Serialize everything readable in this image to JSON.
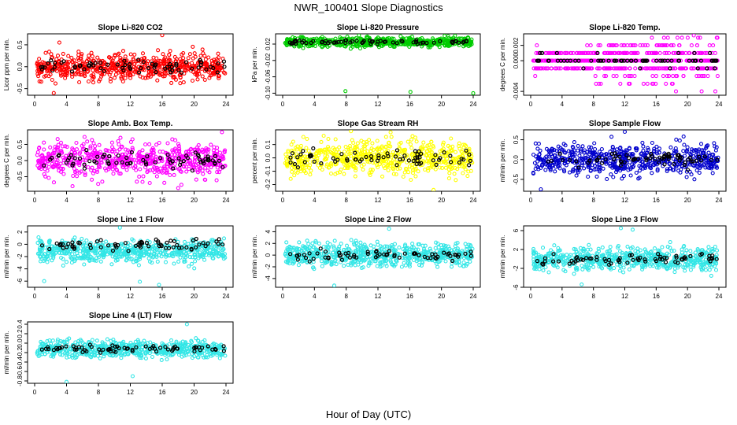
{
  "page": {
    "title": "NWR_100401  Slope Diagnostics",
    "xlabel": "Hour of Day (UTC)"
  },
  "chart_data": [
    {
      "type": "scatter",
      "title": "Slope Li-820 CO2",
      "ylabel": "Licor ppm per min.",
      "xlim": [
        0,
        24
      ],
      "ylim": [
        -0.65,
        0.75
      ],
      "xticks": [
        0,
        4,
        8,
        12,
        16,
        20,
        24
      ],
      "xtick_labels": [
        "0",
        "4",
        "8",
        "12",
        "16",
        "20",
        "24"
      ],
      "yticks": [
        -0.5,
        0.0,
        0.5
      ],
      "ytick_labels": [
        "-0.5",
        "0.0",
        "0.5"
      ],
      "color": "#ff0000",
      "center": 0.0,
      "spread": 0.22,
      "outliers": [
        [
          2.4,
          -0.6
        ],
        [
          16.0,
          0.72
        ],
        [
          3.1,
          0.55
        ],
        [
          17.0,
          0.36
        ]
      ],
      "series": [
        {
          "values_summary": "dense band of ~700 points spread -0.3 to 0.3 across 0-24 h",
          "color": "#ff0000"
        },
        {
          "values_summary": "sparse black points near 0 across 0-24 h",
          "color": "#000000"
        }
      ]
    },
    {
      "type": "scatter",
      "title": "Slope Li-820 Pressure",
      "ylabel": "kPa per min.",
      "xlim": [
        0,
        24
      ],
      "ylim": [
        -0.105,
        0.045
      ],
      "xticks": [
        0,
        4,
        8,
        12,
        16,
        20,
        24
      ],
      "xtick_labels": [
        "0",
        "4",
        "8",
        "12",
        "16",
        "20",
        "24"
      ],
      "yticks": [
        -0.1,
        -0.06,
        -0.02,
        0.02
      ],
      "ytick_labels": [
        "-0.10",
        "-0.06",
        "-0.02",
        "0.02"
      ],
      "color": "#00cc00",
      "center": 0.025,
      "spread": 0.008,
      "outliers": [
        [
          7.9,
          -0.095
        ],
        [
          16.1,
          -0.097
        ],
        [
          24.0,
          -0.1
        ],
        [
          20.4,
          0.04
        ],
        [
          16.3,
          0.038
        ]
      ],
      "series": [
        {
          "values_summary": "tight band near 0.02 kPa per min. across 0-24 h",
          "color": "#00cc00"
        },
        {
          "values_summary": "sparse black points near 0.02",
          "color": "#000000"
        }
      ]
    },
    {
      "type": "scatter",
      "title": "Slope Li-820 Temp.",
      "ylabel": "degrees C per min.",
      "xlim": [
        0,
        24
      ],
      "ylim": [
        -0.0045,
        0.0035
      ],
      "xticks": [
        0,
        4,
        8,
        12,
        16,
        20,
        24
      ],
      "xtick_labels": [
        "0",
        "4",
        "8",
        "12",
        "16",
        "20",
        "24"
      ],
      "yticks": [
        -0.004,
        0.0,
        0.002
      ],
      "ytick_labels": [
        "-0.004",
        "0.000",
        "0.002"
      ],
      "color": "#ff00ff",
      "center": 0.0,
      "spread": 0.0012,
      "quantum": 0.001,
      "outliers": [
        [
          20.8,
          0.0033
        ],
        [
          21.8,
          -0.004
        ]
      ],
      "series": [
        {
          "values_summary": "quantized points at 0, ±0.001, ±0.002 spreading wider after 8 h",
          "color": "#ff00ff"
        },
        {
          "values_summary": "sparse black points near 0",
          "color": "#000000"
        }
      ]
    },
    {
      "type": "scatter",
      "title": "Slope Amb. Box Temp.",
      "ylabel": "degrees C per min.",
      "xlim": [
        0,
        24
      ],
      "ylim": [
        -0.95,
        0.95
      ],
      "xticks": [
        0,
        4,
        8,
        12,
        16,
        20,
        24
      ],
      "xtick_labels": [
        "0",
        "4",
        "8",
        "12",
        "16",
        "20",
        "24"
      ],
      "yticks": [
        -0.5,
        0.0,
        0.5
      ],
      "ytick_labels": [
        "-0.5",
        "0.0",
        "0.5"
      ],
      "color": "#ff00ff",
      "center": 0.0,
      "spread": 0.38,
      "outliers": [
        [
          23.5,
          0.88
        ],
        [
          18.0,
          -0.85
        ]
      ],
      "series": [
        {
          "values_summary": "broad band -0.8 to 0.8 across 0-24 h",
          "color": "#ff00ff"
        },
        {
          "values_summary": "sparse black points near 0",
          "color": "#000000"
        }
      ]
    },
    {
      "type": "scatter",
      "title": "Slope Gas Stream RH",
      "ylabel": "percent per min.",
      "xlim": [
        0,
        24
      ],
      "ylim": [
        -0.25,
        0.21
      ],
      "xticks": [
        0,
        4,
        8,
        12,
        16,
        20,
        24
      ],
      "xtick_labels": [
        "0",
        "4",
        "8",
        "12",
        "16",
        "20",
        "24"
      ],
      "yticks": [
        -0.2,
        -0.1,
        0.0,
        0.1
      ],
      "ytick_labels": [
        "-0.2",
        "-0.1",
        "0.0",
        "0.1"
      ],
      "color": "#ffff00",
      "center": 0.0,
      "spread": 0.09,
      "outliers": [
        [
          8.6,
          0.2
        ],
        [
          19.0,
          -0.24
        ]
      ],
      "series": [
        {
          "values_summary": "band -0.2 to 0.2 across 0-24 h",
          "color": "#ffff00"
        },
        {
          "values_summary": "sparse black points near 0",
          "color": "#000000"
        }
      ]
    },
    {
      "type": "scatter",
      "title": "Slope Sample Flow",
      "ylabel": "ml/min per min.",
      "xlim": [
        0,
        24
      ],
      "ylim": [
        -0.8,
        0.75
      ],
      "xticks": [
        0,
        4,
        8,
        12,
        16,
        20,
        24
      ],
      "xtick_labels": [
        "0",
        "4",
        "8",
        "12",
        "16",
        "20",
        "24"
      ],
      "yticks": [
        -0.5,
        0.0,
        0.5
      ],
      "ytick_labels": [
        "-0.5",
        "0.0",
        "0.5"
      ],
      "color": "#0000cc",
      "center": 0.0,
      "spread": 0.28,
      "outliers": [
        [
          1.3,
          -0.75
        ],
        [
          12.0,
          0.7
        ]
      ],
      "series": [
        {
          "values_summary": "band -0.7 to 0.7 across 0-24 h",
          "color": "#0000cc"
        },
        {
          "values_summary": "sparse black points near 0",
          "color": "#000000"
        }
      ]
    },
    {
      "type": "scatter",
      "title": "Slope Line 1 Flow",
      "ylabel": "ml/min per min.",
      "xlim": [
        0,
        24
      ],
      "ylim": [
        -7,
        3
      ],
      "xticks": [
        0,
        4,
        8,
        12,
        16,
        20,
        24
      ],
      "xtick_labels": [
        "0",
        "4",
        "8",
        "12",
        "16",
        "20",
        "24"
      ],
      "yticks": [
        -6,
        -4,
        -2,
        0,
        2
      ],
      "ytick_labels": [
        "-6",
        "-4",
        "-2",
        "0",
        "2"
      ],
      "color": "#33e6e6",
      "center": -1.2,
      "spread": 1.3,
      "outliers": [
        [
          15.6,
          -6.6
        ],
        [
          10.7,
          2.7
        ],
        [
          1.2,
          -6.0
        ],
        [
          13.2,
          -6.1
        ]
      ],
      "series": [
        {
          "values_summary": "band -5 to 2 across 0-24 h",
          "color": "#33e6e6"
        },
        {
          "values_summary": "black points near 0",
          "color": "#000000"
        }
      ]
    },
    {
      "type": "scatter",
      "title": "Slope Line 2 Flow",
      "ylabel": "ml/min per min.",
      "xlim": [
        0,
        24
      ],
      "ylim": [
        -5.5,
        5
      ],
      "xticks": [
        0,
        4,
        8,
        12,
        16,
        20,
        24
      ],
      "xtick_labels": [
        "0",
        "4",
        "8",
        "12",
        "16",
        "20",
        "24"
      ],
      "yticks": [
        -4,
        -2,
        0,
        2,
        4
      ],
      "ytick_labels": [
        "-4",
        "-2",
        "0",
        "2",
        "4"
      ],
      "color": "#33e6e6",
      "center": 0.0,
      "spread": 1.4,
      "outliers": [
        [
          6.5,
          -5.2
        ],
        [
          13.4,
          4.5
        ]
      ],
      "series": [
        {
          "values_summary": "band -4 to 4 across 0-24 h",
          "color": "#33e6e6"
        },
        {
          "values_summary": "sparse black points near 0",
          "color": "#000000"
        }
      ]
    },
    {
      "type": "scatter",
      "title": "Slope Line 3 Flow",
      "ylabel": "ml/min per min.",
      "xlim": [
        0,
        24
      ],
      "ylim": [
        -6,
        7
      ],
      "xticks": [
        0,
        4,
        8,
        12,
        16,
        20,
        24
      ],
      "xtick_labels": [
        "0",
        "4",
        "8",
        "12",
        "16",
        "20",
        "24"
      ],
      "yticks": [
        -6,
        -2,
        2,
        6
      ],
      "ytick_labels": [
        "-6",
        "-2",
        "2",
        "6"
      ],
      "color": "#33e6e6",
      "center": 0.0,
      "spread": 1.7,
      "outliers": [
        [
          6.5,
          -5.4
        ],
        [
          11.5,
          6.5
        ],
        [
          13.0,
          6.2
        ]
      ],
      "series": [
        {
          "values_summary": "band -5 to 5 across 0-24 h",
          "color": "#33e6e6"
        },
        {
          "values_summary": "sparse black points near 0",
          "color": "#000000"
        }
      ]
    },
    {
      "type": "scatter",
      "title": "Slope Line 4 (LT) Flow",
      "ylabel": "ml/min per min.",
      "xlim": [
        0,
        24
      ],
      "ylim": [
        -0.85,
        0.45
      ],
      "xticks": [
        0,
        4,
        8,
        12,
        16,
        20,
        24
      ],
      "xtick_labels": [
        "0",
        "4",
        "8",
        "12",
        "16",
        "20",
        "24"
      ],
      "yticks": [
        -0.8,
        -0.6,
        -0.4,
        -0.2,
        0.0,
        0.2,
        0.4
      ],
      "ytick_labels": [
        "-0.8",
        "-0.6",
        "-0.4",
        "-0.2",
        "0.0",
        "0.2",
        "0.4"
      ],
      "color": "#33e6e6",
      "center": -0.12,
      "spread": 0.13,
      "outliers": [
        [
          4.0,
          -0.82
        ],
        [
          12.3,
          -0.7
        ],
        [
          19.1,
          0.4
        ]
      ],
      "series": [
        {
          "values_summary": "band -0.5 to 0.3 across 0-24 h",
          "color": "#33e6e6"
        },
        {
          "values_summary": "sparse black points near -0.1",
          "color": "#000000"
        }
      ]
    }
  ]
}
